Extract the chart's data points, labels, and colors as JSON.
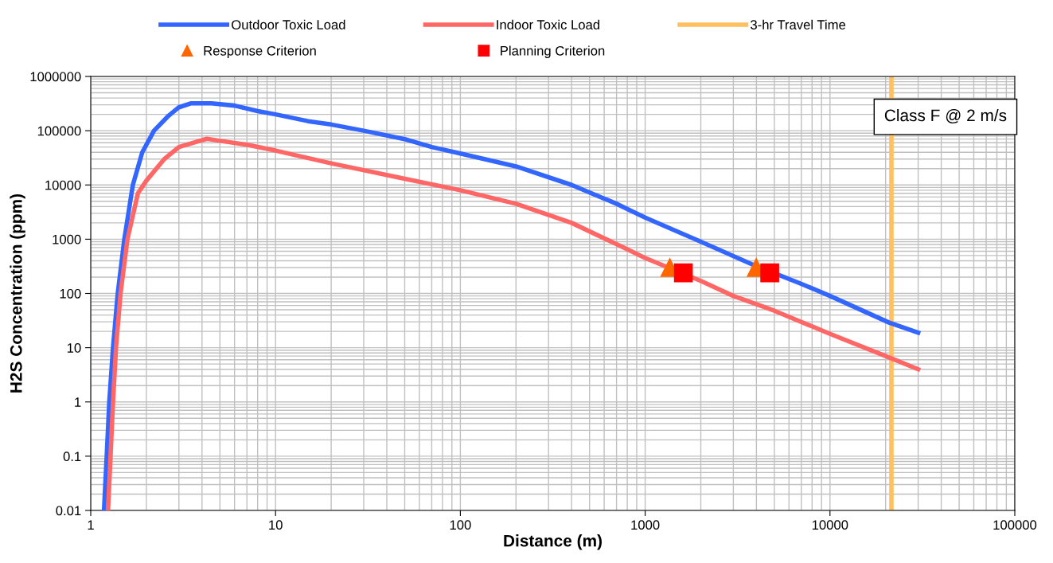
{
  "chart_data": {
    "type": "line",
    "xlabel": "Distance (m)",
    "ylabel": "H2S Concentration (ppm)",
    "log": "xy",
    "grid": true,
    "legend": "top",
    "xlim": [
      1,
      100000
    ],
    "xticks": [
      1,
      10,
      100,
      1000,
      10000,
      100000
    ],
    "ylim": [
      0.01,
      1000000
    ],
    "yticks": [
      0.01,
      0.1,
      1,
      10,
      100,
      1000,
      10000,
      100000,
      1000000
    ],
    "series": [
      {
        "name": "Outdoor Toxic Load",
        "color": "#3366ff",
        "x": [
          1.18,
          1.22,
          1.26,
          1.32,
          1.4,
          1.52,
          1.69,
          1.9,
          2.2,
          2.6,
          3.0,
          3.5,
          4.5,
          6,
          8,
          10,
          15,
          20,
          30,
          50,
          70,
          100,
          200,
          400,
          700,
          1000,
          2000,
          3900,
          7000,
          10000,
          20900,
          30000
        ],
        "values": [
          0.01,
          0.1,
          1,
          10,
          100,
          1000,
          10000,
          40000,
          100000,
          180000,
          270000,
          320000,
          320000,
          290000,
          230000,
          200000,
          150000,
          130000,
          100000,
          70000,
          50000,
          38000,
          22000,
          10000,
          4500,
          2500,
          900,
          330,
          150,
          90,
          29,
          19
        ]
      },
      {
        "name": "Indoor Toxic Load",
        "color": "#ff6666",
        "x": [
          1.24,
          1.28,
          1.32,
          1.37,
          1.45,
          1.58,
          1.8,
          2.0,
          2.5,
          3,
          4.25,
          5,
          7,
          10,
          20,
          50,
          100,
          200,
          400,
          740,
          1000,
          2000,
          3000,
          5000,
          10000,
          20000,
          30000
        ],
        "values": [
          0.01,
          0.1,
          1,
          10,
          100,
          1000,
          7000,
          12000,
          30000,
          50000,
          71000,
          65000,
          55000,
          43000,
          25000,
          13000,
          8000,
          4500,
          2000,
          740,
          450,
          170,
          90,
          48,
          18,
          7,
          4
        ]
      },
      {
        "name": "Response Criterion",
        "type": "scatter",
        "marker": "triangle",
        "color": "#ff6600",
        "x": [
          1360,
          3990
        ],
        "values": [
          300,
          300
        ]
      },
      {
        "name": "Planning Criterion",
        "type": "scatter",
        "marker": "square",
        "color": "#ff0000",
        "x": [
          1610,
          4720
        ],
        "values": [
          240,
          240
        ]
      }
    ],
    "ref_lines": [
      {
        "axis": "x",
        "value": 21500,
        "label": "3-hr Travel Time",
        "color": "#ffc060"
      }
    ],
    "annotations": [
      "Class F @ 2 m/s"
    ]
  }
}
